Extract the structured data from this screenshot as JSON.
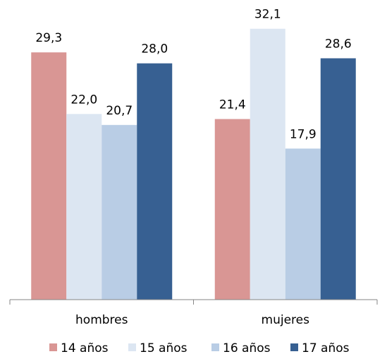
{
  "chart_data": {
    "type": "bar",
    "categories": [
      "hombres",
      "mujeres"
    ],
    "series": [
      {
        "name": "14 años",
        "values": [
          29.3,
          21.4
        ],
        "color": "#d99694"
      },
      {
        "name": "15 años",
        "values": [
          22.0,
          32.1
        ],
        "color": "#dce6f2"
      },
      {
        "name": "16 años",
        "values": [
          20.7,
          17.9
        ],
        "color": "#b9cde5"
      },
      {
        "name": "17 años",
        "values": [
          28.0,
          28.6
        ],
        "color": "#376092"
      }
    ],
    "value_labels": [
      [
        "29,3",
        "21,4"
      ],
      [
        "22,0",
        "32,1"
      ],
      [
        "20,7",
        "17,9"
      ],
      [
        "28,0",
        "28,6"
      ]
    ],
    "ylim": [
      0,
      34
    ],
    "grid": false,
    "legend_position": "bottom",
    "axis_color": "#868686"
  }
}
